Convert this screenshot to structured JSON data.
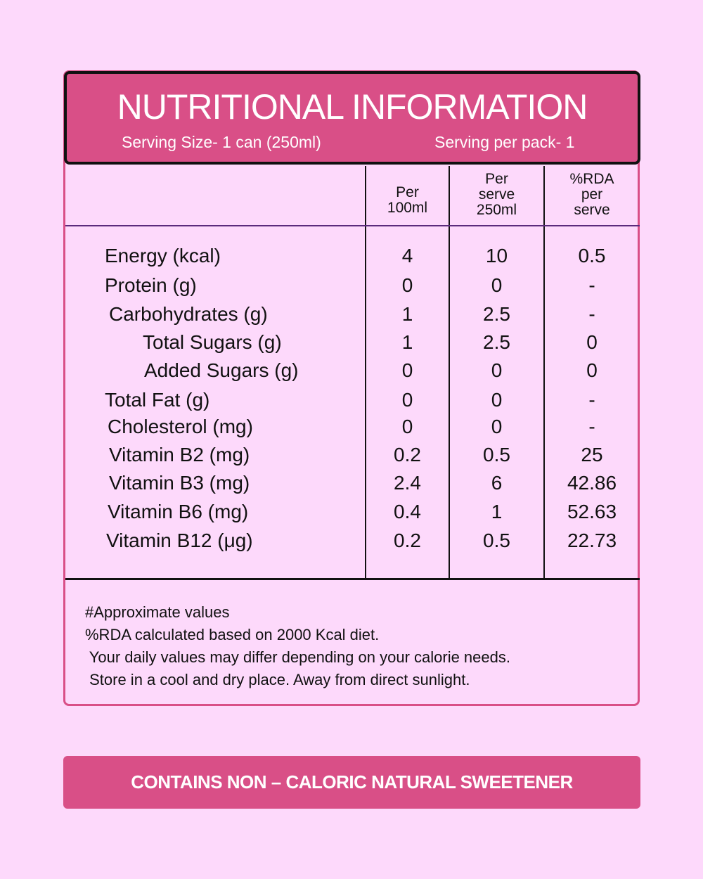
{
  "header": {
    "title": "NUTRITIONAL INFORMATION",
    "serving_size": "Serving Size- 1 can (250ml)",
    "serving_per_pack": "Serving per pack- 1"
  },
  "columns": [
    {
      "line1": "Per",
      "line2": "100ml",
      "line3": ""
    },
    {
      "line1": "Per",
      "line2": "serve",
      "line3": "250ml"
    },
    {
      "line1": "%RDA",
      "line2": "per",
      "line3": "serve"
    }
  ],
  "rows": [
    {
      "label": "Energy (kcal)",
      "per100": "4",
      "perserve": "10",
      "rda": "0.5"
    },
    {
      "label": "Protein (g)",
      "per100": "0",
      "perserve": "0",
      "rda": "-"
    },
    {
      "label": "Carbohydrates (g)",
      "per100": "1",
      "perserve": "2.5",
      "rda": "-"
    },
    {
      "label": "Total Sugars (g)",
      "per100": "1",
      "perserve": "2.5",
      "rda": "0"
    },
    {
      "label": "Added Sugars (g)",
      "per100": "0",
      "perserve": "0",
      "rda": "0"
    },
    {
      "label": "Total Fat (g)",
      "per100": "0",
      "perserve": "0",
      "rda": "-"
    },
    {
      "label": "Cholesterol (mg)",
      "per100": "0",
      "perserve": "0",
      "rda": "-"
    },
    {
      "label": "Vitamin B2 (mg)",
      "per100": "0.2",
      "perserve": "0.5",
      "rda": "25"
    },
    {
      "label": "Vitamin B3 (mg)",
      "per100": "2.4",
      "perserve": "6",
      "rda": "42.86"
    },
    {
      "label": "Vitamin B6 (mg)",
      "per100": "0.4",
      "perserve": "1",
      "rda": "52.63"
    },
    {
      "label": "Vitamin B12 (μg)",
      "per100": "0.2",
      "perserve": "0.5",
      "rda": "22.73"
    }
  ],
  "notes": [
    "#Approximate values",
    "%RDA calculated based on 2000 Kcal diet.",
    " Your daily values may differ depending on your calorie needs.",
    " Store in a cool and dry place. Away from direct sunlight."
  ],
  "banner": "CONTAINS NON – CALORIC NATURAL SWEETENER",
  "colors": {
    "background": "#fdd9fb",
    "accent": "#d94f87",
    "text": "#111111"
  }
}
